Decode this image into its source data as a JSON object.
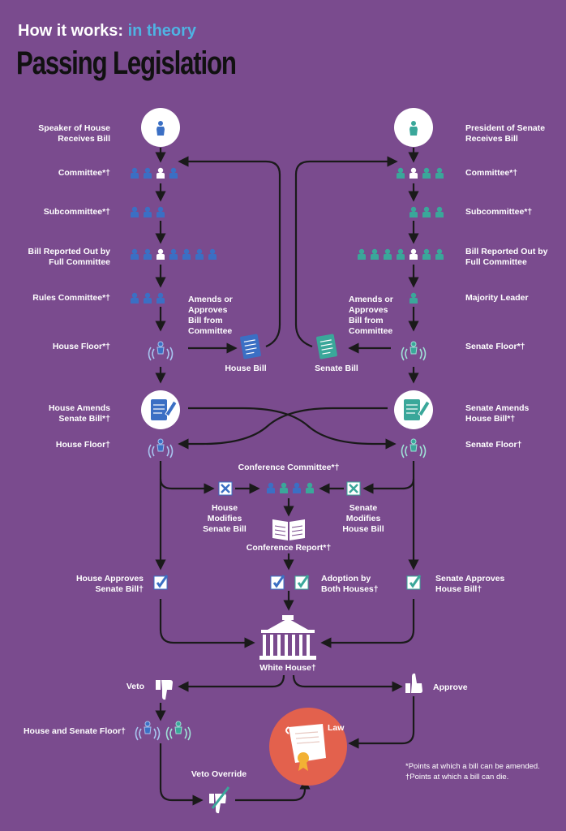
{
  "header": {
    "prefix": "How it works: ",
    "accent": "in theory",
    "title": "Passing Legislation"
  },
  "house": {
    "speaker": "Speaker of House\nReceives Bill",
    "committee": "Committee*†",
    "subcommittee": "Subcommittee*†",
    "reported": "Bill Reported Out by\nFull Committee",
    "rules": "Rules Committee*†",
    "floor": "House Floor*†",
    "amends": "House Amends\nSenate Bill*†",
    "floor2": "House Floor†",
    "approves": "House Approves\nSenate Bill†",
    "bill": "House Bill",
    "amends_approves": "Amends or\nApproves\nBill from\nCommittee",
    "modifies": "House\nModifies\nSenate Bill"
  },
  "senate": {
    "president": "President of Senate\nReceives Bill",
    "committee": "Committee*†",
    "subcommittee": "Subcommittee*†",
    "reported": "Bill Reported Out by\nFull Committee",
    "majority": "Majority Leader",
    "floor": "Senate Floor*†",
    "amends": "Senate Amends\nHouse Bill*†",
    "floor2": "Senate Floor†",
    "approves": "Senate Approves\nHouse Bill†",
    "bill": "Senate Bill",
    "amends_approves": "Amends or\nApproves\nBill from\nCommittee",
    "modifies": "Senate\nModifies\nHouse Bill"
  },
  "conference": {
    "committee": "Conference Committee*†",
    "report": "Conference Report*†",
    "adoption": "Adoption by\nBoth Houses†"
  },
  "end": {
    "white_house": "White House†",
    "veto": "Veto",
    "approve": "Approve",
    "both_floor": "House and Senate Floor†",
    "override": "Veto Override",
    "law": "Law"
  },
  "notes": [
    "*Points at which a bill can be amended.",
    "†Points at which a bill can die."
  ],
  "colors": {
    "background": "#7a4b8e",
    "house": "#3b6fc4",
    "senate": "#3aa79a",
    "arrow": "#1a1a1a",
    "law": "#e3614d",
    "accent": "#4fb3e3"
  }
}
